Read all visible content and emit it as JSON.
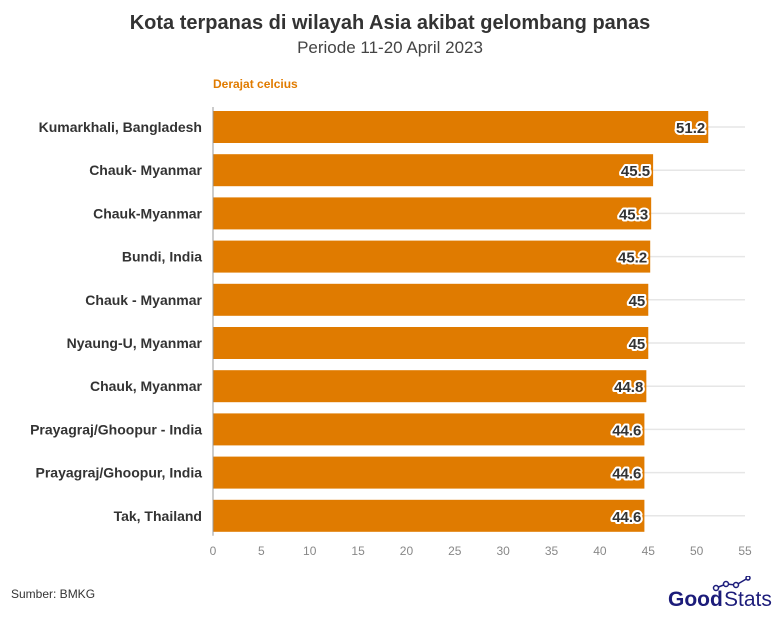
{
  "chart_data": {
    "type": "bar",
    "orientation": "horizontal",
    "title": "Kota terpanas di wilayah Asia akibat gelombang panas",
    "subtitle": "Periode 11-20 April 2023",
    "unit_label": "Derajat celcius",
    "categories": [
      "Kumarkhali, Bangladesh",
      "Chauk- Myanmar",
      "Chauk-Myanmar",
      "Bundi, India",
      "Chauk - Myanmar",
      "Nyaung-U, Myanmar",
      "Chauk, Myanmar",
      "Prayagraj/Ghoopur - India",
      "Prayagraj/Ghoopur, India",
      "Tak, Thailand"
    ],
    "values": [
      51.2,
      45.5,
      45.3,
      45.2,
      45,
      45,
      44.8,
      44.6,
      44.6,
      44.6
    ],
    "data_labels": [
      "51.2",
      "45.5",
      "45.3",
      "45.2",
      "45",
      "45",
      "44.8",
      "44.6",
      "44.6",
      "44.6"
    ],
    "xlim": [
      0,
      55
    ],
    "xticks": [
      "0",
      "5",
      "10",
      "15",
      "20",
      "25",
      "30",
      "35",
      "40",
      "45",
      "50",
      "55"
    ],
    "bar_color": "#e07b00",
    "grid": "horizontal"
  },
  "source": "Sumber: BMKG",
  "logo": "GoodStats"
}
